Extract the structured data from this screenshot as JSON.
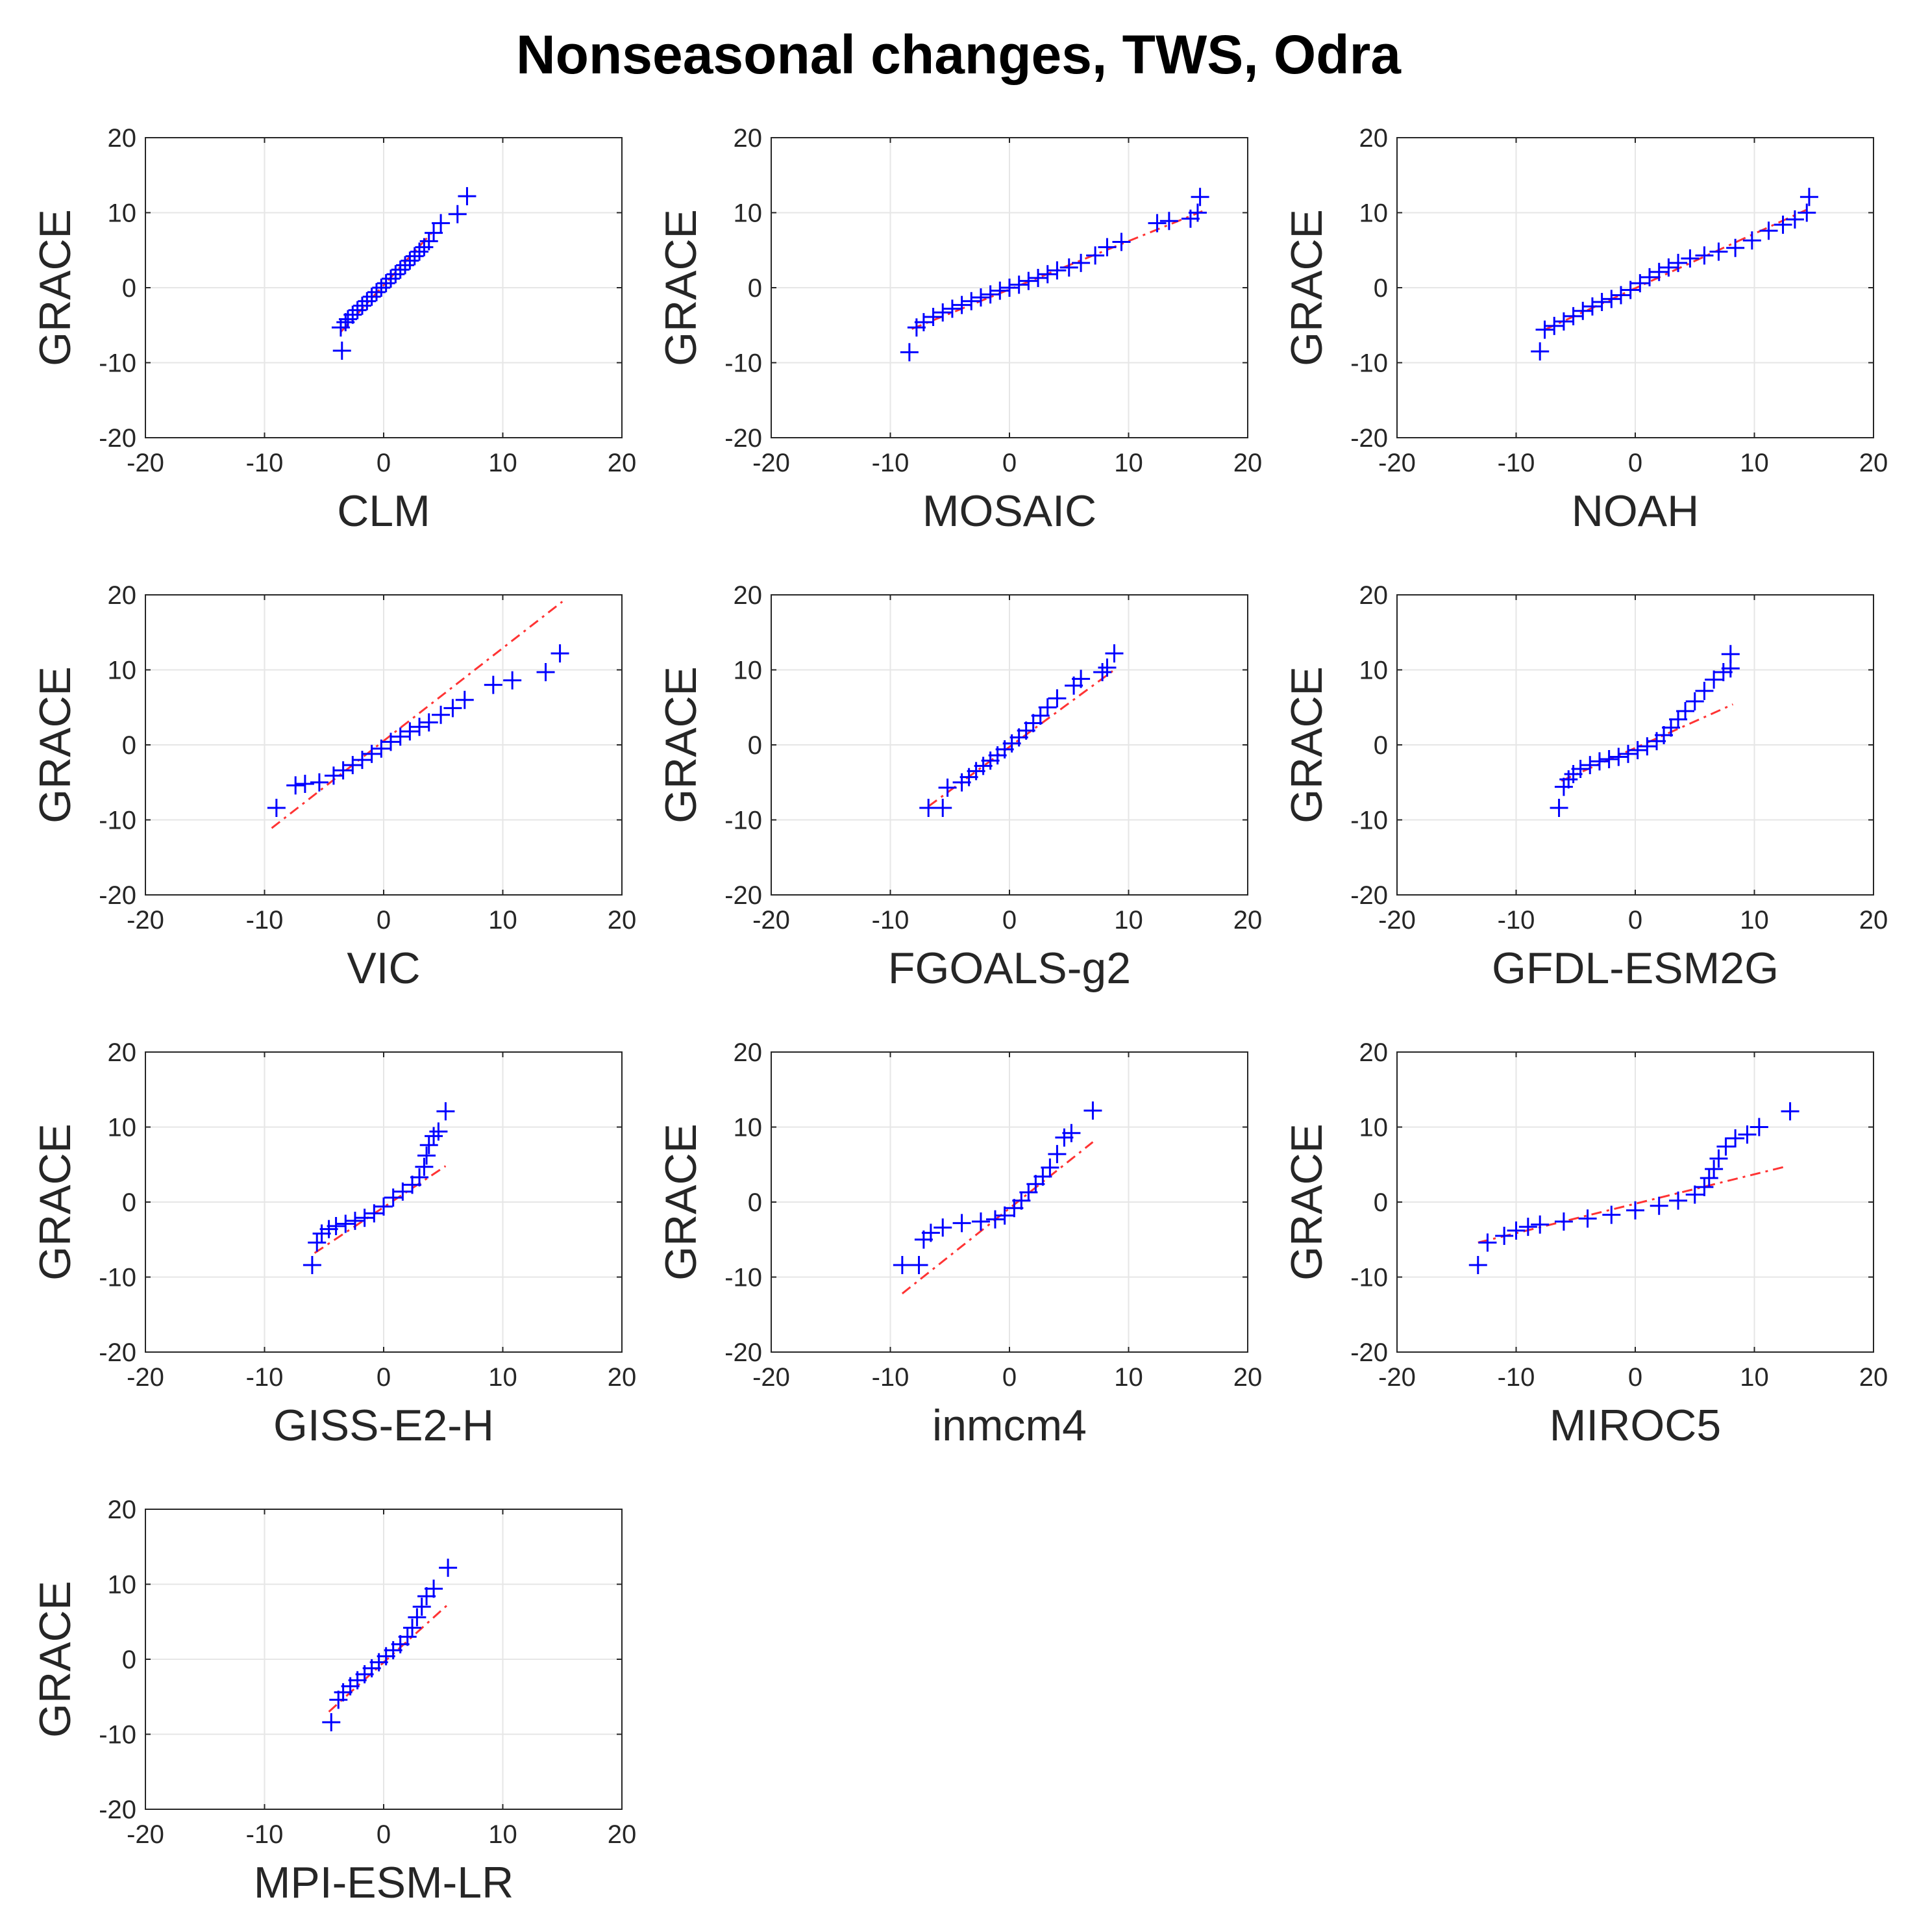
{
  "title": "Nonseasonal changes, TWS, Odra",
  "colors": {
    "markers": "#0000ff",
    "fit_line": "#ff3333",
    "grid": "#e6e6e6",
    "axes": "#262626",
    "text": "#262626"
  },
  "chart_data": [
    {
      "type": "scatter",
      "title": "",
      "xlabel": "CLM",
      "ylabel": "GRACE",
      "xlim": [
        -20,
        20
      ],
      "ylim": [
        -20,
        20
      ],
      "xticks": [
        -20,
        -10,
        0,
        10,
        20
      ],
      "yticks": [
        -20,
        -10,
        0,
        10,
        20
      ],
      "grid": true,
      "marker": "+",
      "ref_line": {
        "x": [
          -3.6,
          4.2
        ],
        "y": [
          -5.9,
          7.6
        ]
      },
      "x": [
        -3.6,
        -3.2,
        -3.0,
        -2.6,
        -2.2,
        -1.8,
        -1.4,
        -1.0,
        -0.6,
        -0.2,
        0.2,
        0.6,
        1.0,
        1.4,
        1.8,
        2.2,
        2.6,
        3.0,
        3.4,
        3.8,
        4.2,
        4.8,
        6.2,
        7.0,
        -3.5
      ],
      "y": [
        -5.3,
        -4.6,
        -4.2,
        -3.6,
        -3.0,
        -2.4,
        -1.8,
        -1.2,
        -0.6,
        0.0,
        0.6,
        1.2,
        1.8,
        2.4,
        3.0,
        3.6,
        4.2,
        4.8,
        5.4,
        6.2,
        7.3,
        8.6,
        9.8,
        12.2,
        -8.4
      ]
    },
    {
      "type": "scatter",
      "title": "",
      "xlabel": "MOSAIC",
      "ylabel": "GRACE",
      "xlim": [
        -20,
        20
      ],
      "ylim": [
        -20,
        20
      ],
      "xticks": [
        -20,
        -10,
        0,
        10,
        20
      ],
      "yticks": [
        -20,
        -10,
        0,
        10,
        20
      ],
      "grid": true,
      "marker": "+",
      "ref_line": {
        "x": [
          -8.2,
          16.2
        ],
        "y": [
          -5.5,
          10.2
        ]
      },
      "x": [
        -8.4,
        -7.8,
        -7.2,
        -6.4,
        -5.6,
        -4.8,
        -4.0,
        -3.2,
        -2.4,
        -1.6,
        -0.8,
        0.0,
        0.8,
        1.6,
        2.4,
        3.2,
        4.0,
        5.0,
        6.0,
        7.2,
        8.2,
        9.4,
        12.4,
        13.4,
        15.2,
        15.8,
        16.0
      ],
      "y": [
        -8.6,
        -5.3,
        -4.6,
        -3.9,
        -3.3,
        -2.8,
        -2.3,
        -1.8,
        -1.3,
        -0.9,
        -0.4,
        0.0,
        0.4,
        0.9,
        1.3,
        1.8,
        2.3,
        2.7,
        3.3,
        4.3,
        5.4,
        6.1,
        8.6,
        8.9,
        9.2,
        10.0,
        12.1
      ]
    },
    {
      "type": "scatter",
      "title": "",
      "xlabel": "NOAH",
      "ylabel": "GRACE",
      "xlim": [
        -20,
        20
      ],
      "ylim": [
        -20,
        20
      ],
      "xticks": [
        -20,
        -10,
        0,
        10,
        20
      ],
      "yticks": [
        -20,
        -10,
        0,
        10,
        20
      ],
      "grid": true,
      "marker": "+",
      "ref_line": {
        "x": [
          -7.6,
          14.4
        ],
        "y": [
          -5.6,
          10.4
        ]
      },
      "x": [
        -8.0,
        -7.6,
        -6.8,
        -6.0,
        -5.2,
        -4.4,
        -3.6,
        -2.8,
        -2.0,
        -1.2,
        -0.4,
        0.4,
        1.2,
        2.0,
        2.8,
        3.6,
        4.6,
        5.8,
        7.0,
        8.4,
        9.8,
        11.2,
        12.4,
        13.4,
        14.4,
        14.6
      ],
      "y": [
        -8.5,
        -5.6,
        -5.1,
        -4.5,
        -3.8,
        -3.1,
        -2.5,
        -1.9,
        -1.5,
        -1.0,
        -0.3,
        0.6,
        1.4,
        2.1,
        2.7,
        3.3,
        3.9,
        4.3,
        4.8,
        5.3,
        6.3,
        7.6,
        8.4,
        9.1,
        10.0,
        12.1
      ]
    },
    {
      "type": "scatter",
      "title": "",
      "xlabel": "VIC",
      "ylabel": "GRACE",
      "xlim": [
        -20,
        20
      ],
      "ylim": [
        -20,
        20
      ],
      "xticks": [
        -20,
        -10,
        0,
        10,
        20
      ],
      "yticks": [
        -20,
        -10,
        0,
        10,
        20
      ],
      "grid": true,
      "marker": "+",
      "ref_line": {
        "x": [
          -9.4,
          15.0
        ],
        "y": [
          -11.1,
          19.1
        ]
      },
      "x": [
        -9.0,
        -7.4,
        -6.6,
        -5.4,
        -4.2,
        -3.4,
        -2.6,
        -1.8,
        -1.0,
        -0.2,
        0.6,
        1.4,
        2.2,
        3.0,
        3.8,
        4.8,
        5.8,
        6.8,
        9.2,
        10.8,
        13.6,
        14.8
      ],
      "y": [
        -8.4,
        -5.4,
        -5.2,
        -5.0,
        -4.1,
        -3.4,
        -2.7,
        -2.0,
        -1.2,
        -0.5,
        0.4,
        1.1,
        1.8,
        2.4,
        3.0,
        4.0,
        4.9,
        6.0,
        8.0,
        8.6,
        9.7,
        12.2
      ]
    },
    {
      "type": "scatter",
      "title": "",
      "xlabel": "FGOALS-g2",
      "ylabel": "GRACE",
      "xlim": [
        -20,
        20
      ],
      "ylim": [
        -20,
        20
      ],
      "xticks": [
        -20,
        -10,
        0,
        10,
        20
      ],
      "yticks": [
        -20,
        -10,
        0,
        10,
        20
      ],
      "grid": true,
      "marker": "+",
      "ref_line": {
        "x": [
          -6.8,
          8.8
        ],
        "y": [
          -8.2,
          10.0
        ]
      },
      "x": [
        -6.8,
        -5.6,
        -5.2,
        -4.0,
        -3.4,
        -2.8,
        -2.2,
        -1.6,
        -1.0,
        -0.4,
        0.2,
        0.8,
        1.4,
        2.0,
        2.6,
        3.2,
        4.0,
        5.4,
        6.0,
        7.8,
        8.2,
        8.8
      ],
      "y": [
        -8.4,
        -8.4,
        -5.7,
        -5.0,
        -4.3,
        -3.5,
        -2.8,
        -2.1,
        -1.4,
        -0.6,
        0.2,
        1.0,
        1.9,
        2.9,
        3.9,
        5.0,
        6.2,
        7.9,
        8.8,
        9.7,
        10.3,
        12.2
      ]
    },
    {
      "type": "scatter",
      "title": "",
      "xlabel": "GFDL-ESM2G",
      "ylabel": "GRACE",
      "xlim": [
        -20,
        20
      ],
      "ylim": [
        -20,
        20
      ],
      "xticks": [
        -20,
        -10,
        0,
        10,
        20
      ],
      "yticks": [
        -20,
        -10,
        0,
        10,
        20
      ],
      "grid": true,
      "marker": "+",
      "ref_line": {
        "x": [
          -6.2,
          8.2
        ],
        "y": [
          -4.8,
          5.4
        ]
      },
      "x": [
        -6.4,
        -6.0,
        -5.6,
        -5.2,
        -4.6,
        -3.8,
        -3.0,
        -2.2,
        -1.4,
        -0.6,
        0.2,
        1.0,
        1.8,
        2.4,
        3.0,
        3.6,
        4.2,
        5.0,
        5.8,
        6.6,
        7.4,
        8.0,
        8.0
      ],
      "y": [
        -8.4,
        -5.6,
        -4.6,
        -3.9,
        -3.2,
        -2.7,
        -2.2,
        -1.9,
        -1.6,
        -1.2,
        -0.7,
        -0.2,
        0.5,
        1.3,
        2.3,
        3.4,
        4.5,
        5.8,
        7.2,
        8.7,
        9.7,
        10.2,
        12.1
      ]
    },
    {
      "type": "scatter",
      "title": "",
      "xlabel": "GISS-E2-H",
      "ylabel": "GRACE",
      "xlim": [
        -20,
        20
      ],
      "ylim": [
        -20,
        20
      ],
      "xticks": [
        -20,
        -10,
        0,
        10,
        20
      ],
      "yticks": [
        -20,
        -10,
        0,
        10,
        20
      ],
      "grid": true,
      "marker": "+",
      "ref_line": {
        "x": [
          -5.8,
          5.2
        ],
        "y": [
          -6.8,
          4.8
        ]
      },
      "x": [
        -6.0,
        -5.6,
        -5.2,
        -4.6,
        -4.0,
        -3.2,
        -2.4,
        -1.6,
        -0.8,
        0.0,
        0.8,
        1.6,
        2.4,
        3.0,
        3.4,
        3.6,
        3.8,
        4.2,
        4.6,
        5.2
      ],
      "y": [
        -8.4,
        -5.4,
        -4.2,
        -3.6,
        -3.2,
        -2.9,
        -2.5,
        -2.1,
        -1.5,
        -0.6,
        0.6,
        1.4,
        2.3,
        3.3,
        4.7,
        6.2,
        7.6,
        8.8,
        9.4,
        12.1
      ]
    },
    {
      "type": "scatter",
      "title": "",
      "xlabel": "inmcm4",
      "ylabel": "GRACE",
      "xlim": [
        -20,
        20
      ],
      "ylim": [
        -20,
        20
      ],
      "xticks": [
        -20,
        -10,
        0,
        10,
        20
      ],
      "yticks": [
        -20,
        -10,
        0,
        10,
        20
      ],
      "grid": true,
      "marker": "+",
      "ref_line": {
        "x": [
          -9.0,
          7.0
        ],
        "y": [
          -12.2,
          8.0
        ]
      },
      "x": [
        -9.0,
        -7.6,
        -7.2,
        -6.6,
        -5.6,
        -4.0,
        -2.4,
        -1.2,
        -0.4,
        0.4,
        1.0,
        1.6,
        2.2,
        2.8,
        3.4,
        4.0,
        4.6,
        5.2,
        7.0
      ],
      "y": [
        -8.4,
        -8.4,
        -5.0,
        -4.1,
        -3.4,
        -2.8,
        -2.6,
        -2.3,
        -1.8,
        -0.8,
        0.2,
        1.3,
        2.4,
        3.4,
        4.6,
        6.4,
        8.6,
        9.2,
        12.2
      ]
    },
    {
      "type": "scatter",
      "title": "",
      "xlabel": "MIROC5",
      "ylabel": "GRACE",
      "xlim": [
        -20,
        20
      ],
      "ylim": [
        -20,
        20
      ],
      "xticks": [
        -20,
        -10,
        0,
        10,
        20
      ],
      "yticks": [
        -20,
        -10,
        0,
        10,
        20
      ],
      "grid": true,
      "marker": "+",
      "ref_line": {
        "x": [
          -13.2,
          12.8
        ],
        "y": [
          -5.4,
          4.8
        ]
      },
      "x": [
        -13.2,
        -12.4,
        -11.0,
        -10.0,
        -9.0,
        -8.0,
        -6.0,
        -4.0,
        -2.0,
        0.0,
        2.0,
        3.6,
        5.0,
        5.8,
        6.2,
        6.6,
        7.0,
        7.6,
        8.4,
        9.4,
        10.4,
        13.0
      ],
      "y": [
        -8.4,
        -5.4,
        -4.5,
        -3.8,
        -3.3,
        -3.0,
        -2.6,
        -2.2,
        -1.7,
        -1.1,
        -0.5,
        0.2,
        1.0,
        2.0,
        3.2,
        4.4,
        5.8,
        7.4,
        8.5,
        9.0,
        10.0,
        12.1
      ]
    },
    {
      "type": "scatter",
      "title": "",
      "xlabel": "MPI-ESM-LR",
      "ylabel": "GRACE",
      "xlim": [
        -20,
        20
      ],
      "ylim": [
        -20,
        20
      ],
      "xticks": [
        -20,
        -10,
        0,
        10,
        20
      ],
      "yticks": [
        -20,
        -10,
        0,
        10,
        20
      ],
      "grid": true,
      "marker": "+",
      "ref_line": {
        "x": [
          -4.6,
          5.4
        ],
        "y": [
          -7.0,
          7.3
        ]
      },
      "x": [
        -4.4,
        -3.8,
        -3.4,
        -2.8,
        -2.2,
        -1.6,
        -1.0,
        -0.4,
        0.2,
        0.8,
        1.4,
        2.0,
        2.4,
        2.8,
        3.2,
        3.6,
        4.2,
        5.4
      ],
      "y": [
        -8.4,
        -5.4,
        -4.4,
        -3.6,
        -2.8,
        -2.0,
        -1.2,
        -0.4,
        0.4,
        1.2,
        2.0,
        3.0,
        4.2,
        5.6,
        7.0,
        8.4,
        9.4,
        12.2
      ]
    }
  ]
}
